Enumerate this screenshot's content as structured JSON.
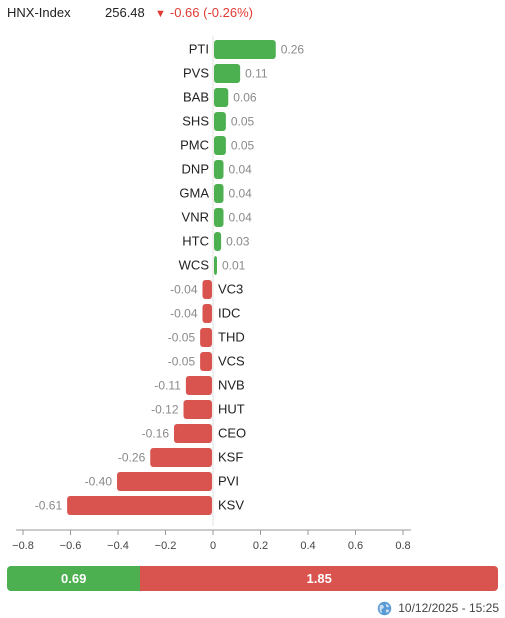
{
  "header": {
    "index_name": "HNX-Index",
    "index_value": "256.48",
    "change_arrow": "▼",
    "change_text": "-0.66 (-0.26%)"
  },
  "colors": {
    "positive": "#4caf50",
    "negative": "#d9534f",
    "change_down": "#e03a33"
  },
  "chart_data": {
    "type": "bar",
    "orientation": "horizontal",
    "categories": [
      "PTI",
      "PVS",
      "BAB",
      "SHS",
      "PMC",
      "DNP",
      "GMA",
      "VNR",
      "HTC",
      "WCS",
      "VC3",
      "IDC",
      "THD",
      "VCS",
      "NVB",
      "HUT",
      "CEO",
      "KSF",
      "PVI",
      "KSV"
    ],
    "values": [
      0.26,
      0.11,
      0.06,
      0.05,
      0.05,
      0.04,
      0.04,
      0.04,
      0.03,
      0.01,
      -0.04,
      -0.04,
      -0.05,
      -0.05,
      -0.11,
      -0.12,
      -0.16,
      -0.26,
      -0.4,
      -0.61
    ],
    "value_labels": [
      "0.26",
      "0.11",
      "0.06",
      "0.05",
      "0.05",
      "0.04",
      "0.04",
      "0.04",
      "0.03",
      "0.01",
      "-0.04",
      "-0.04",
      "-0.05",
      "-0.05",
      "-0.11",
      "-0.12",
      "-0.16",
      "-0.26",
      "-0.40",
      "-0.61"
    ],
    "xlim": [
      -0.8,
      0.8
    ],
    "xticks": [
      -0.8,
      -0.6,
      -0.4,
      -0.2,
      0,
      0.2,
      0.4,
      0.6,
      0.8
    ],
    "xtick_labels": [
      "−0.8",
      "−0.6",
      "−0.4",
      "−0.2",
      "0",
      "0.2",
      "0.4",
      "0.6",
      "0.8"
    ],
    "grid": false,
    "legend": "none",
    "title": "",
    "xlabel": "",
    "ylabel": ""
  },
  "summary": {
    "positive_total": "0.69",
    "negative_total": "1.85",
    "positive_value": 0.69,
    "negative_value": 1.85
  },
  "footer": {
    "globe_icon": "globe-icon",
    "timestamp": "10/12/2025 - 15:25"
  }
}
